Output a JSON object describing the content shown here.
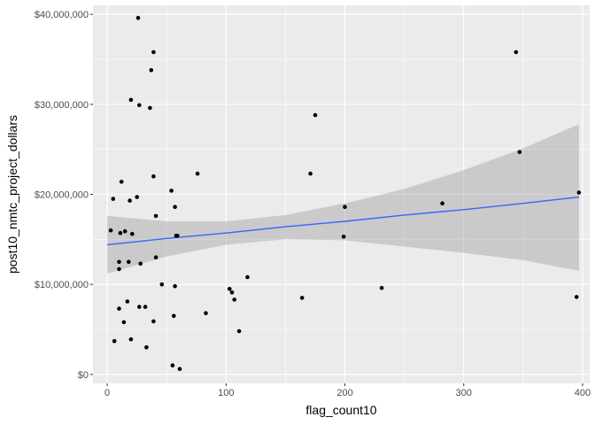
{
  "chart_data": {
    "type": "scatter",
    "xlabel": "flag_count10",
    "ylabel": "post10_nmtc_project_dollars",
    "xlim": [
      -12,
      406
    ],
    "ylim": [
      -1000000,
      41000000
    ],
    "x_ticks": [
      0,
      100,
      200,
      300,
      400
    ],
    "x_tick_labels": [
      "0",
      "100",
      "200",
      "300",
      "400"
    ],
    "y_ticks": [
      0,
      10000000,
      20000000,
      30000000,
      40000000
    ],
    "y_tick_labels": [
      "$0",
      "$10,000,000",
      "$20,000,000",
      "$30,000,000",
      "$40,000,000"
    ],
    "grid": true,
    "background": "#ebebeb",
    "grid_color": "#ffffff",
    "point_color": "#000000",
    "trend_color": "#3366ff",
    "band_color": "#999999",
    "points": [
      {
        "x": 3,
        "y": 16000000
      },
      {
        "x": 5,
        "y": 19500000
      },
      {
        "x": 6,
        "y": 3700000
      },
      {
        "x": 10,
        "y": 12500000
      },
      {
        "x": 10,
        "y": 11700000
      },
      {
        "x": 10,
        "y": 7300000
      },
      {
        "x": 11,
        "y": 15700000
      },
      {
        "x": 12,
        "y": 21400000
      },
      {
        "x": 14,
        "y": 5800000
      },
      {
        "x": 15,
        "y": 15900000
      },
      {
        "x": 17,
        "y": 8100000
      },
      {
        "x": 18,
        "y": 12500000
      },
      {
        "x": 19,
        "y": 19300000
      },
      {
        "x": 20,
        "y": 30500000
      },
      {
        "x": 20,
        "y": 3900000
      },
      {
        "x": 21,
        "y": 15600000
      },
      {
        "x": 25,
        "y": 19700000
      },
      {
        "x": 26,
        "y": 39600000
      },
      {
        "x": 27,
        "y": 29900000
      },
      {
        "x": 27,
        "y": 7500000
      },
      {
        "x": 28,
        "y": 12300000
      },
      {
        "x": 32,
        "y": 7500000
      },
      {
        "x": 33,
        "y": 3000000
      },
      {
        "x": 36,
        "y": 29600000
      },
      {
        "x": 37,
        "y": 33800000
      },
      {
        "x": 39,
        "y": 35800000
      },
      {
        "x": 39,
        "y": 22000000
      },
      {
        "x": 39,
        "y": 5900000
      },
      {
        "x": 41,
        "y": 17600000
      },
      {
        "x": 41,
        "y": 13000000
      },
      {
        "x": 46,
        "y": 10000000
      },
      {
        "x": 54,
        "y": 20400000
      },
      {
        "x": 55,
        "y": 1000000
      },
      {
        "x": 56,
        "y": 6500000
      },
      {
        "x": 57,
        "y": 18600000
      },
      {
        "x": 57,
        "y": 9800000
      },
      {
        "x": 58,
        "y": 15400000
      },
      {
        "x": 59,
        "y": 15400000
      },
      {
        "x": 61,
        "y": 600000
      },
      {
        "x": 76,
        "y": 22300000
      },
      {
        "x": 83,
        "y": 6800000
      },
      {
        "x": 103,
        "y": 9500000
      },
      {
        "x": 105,
        "y": 9100000
      },
      {
        "x": 107,
        "y": 8300000
      },
      {
        "x": 111,
        "y": 4800000
      },
      {
        "x": 118,
        "y": 10800000
      },
      {
        "x": 164,
        "y": 8500000
      },
      {
        "x": 171,
        "y": 22300000
      },
      {
        "x": 175,
        "y": 28800000
      },
      {
        "x": 199,
        "y": 15300000
      },
      {
        "x": 200,
        "y": 18600000
      },
      {
        "x": 231,
        "y": 9600000
      },
      {
        "x": 282,
        "y": 19000000
      },
      {
        "x": 344,
        "y": 35800000
      },
      {
        "x": 347,
        "y": 24700000
      },
      {
        "x": 395,
        "y": 8600000
      },
      {
        "x": 397,
        "y": 20200000
      }
    ],
    "trend": {
      "method": "linear",
      "x": [
        0,
        50,
        100,
        150,
        200,
        250,
        300,
        350,
        397
      ],
      "y": [
        14400000,
        15100000,
        15700000,
        16400000,
        17000000,
        17700000,
        18300000,
        19000000,
        19700000
      ],
      "upper": [
        17600000,
        17000000,
        17000000,
        17700000,
        19000000,
        20600000,
        22700000,
        25100000,
        27800000
      ],
      "lower": [
        11200000,
        13100000,
        14400000,
        15000000,
        14900000,
        14200000,
        13500000,
        12700000,
        11500000
      ]
    }
  }
}
